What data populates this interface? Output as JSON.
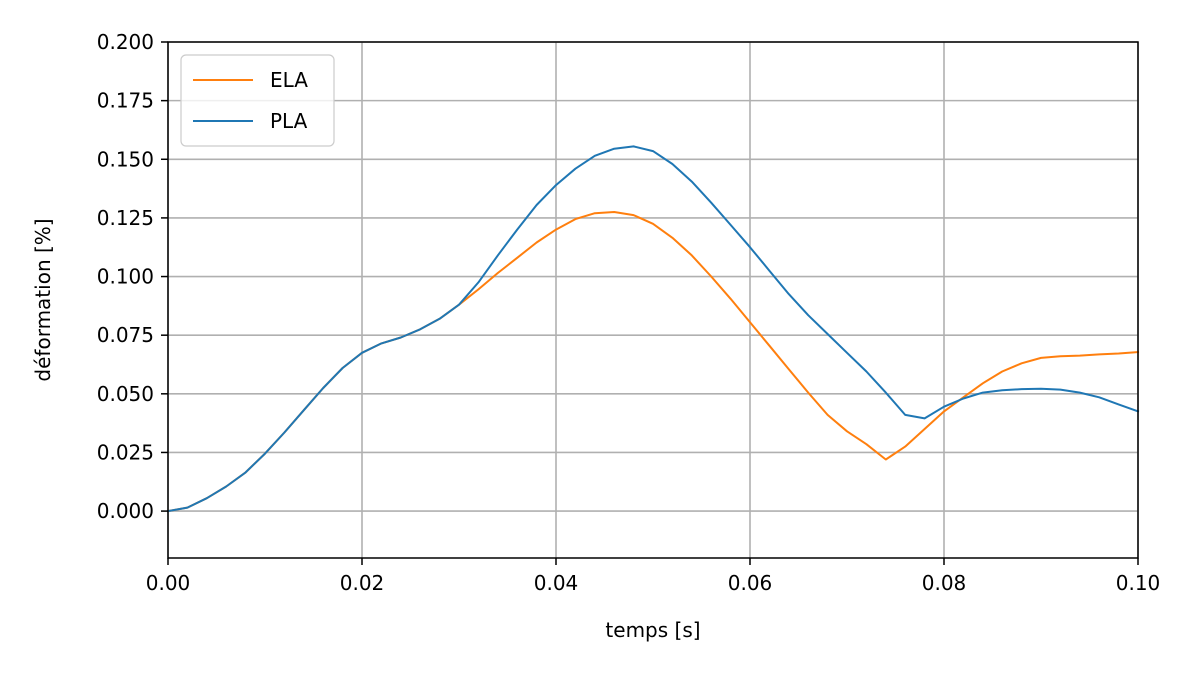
{
  "chart_data": {
    "type": "line",
    "title": "",
    "xlabel": "temps [s]",
    "ylabel": "déformation [%]",
    "xlim": [
      0.0,
      0.1
    ],
    "ylim": [
      -0.02,
      0.2
    ],
    "grid": true,
    "legend_position": "top-left",
    "x_ticks": [
      0.0,
      0.02,
      0.04,
      0.06,
      0.08,
      0.1
    ],
    "x_tick_labels": [
      "0.00",
      "0.02",
      "0.04",
      "0.06",
      "0.08",
      "0.10"
    ],
    "y_ticks": [
      0.0,
      0.025,
      0.05,
      0.075,
      0.1,
      0.125,
      0.15,
      0.175,
      0.2
    ],
    "y_tick_labels": [
      "0.000",
      "0.025",
      "0.050",
      "0.075",
      "0.100",
      "0.125",
      "0.150",
      "0.175",
      "0.200"
    ],
    "series": [
      {
        "name": "ELA",
        "color": "#ff7f0e",
        "x": [
          0.0,
          0.002,
          0.004,
          0.006,
          0.008,
          0.01,
          0.012,
          0.014,
          0.016,
          0.018,
          0.02,
          0.022,
          0.024,
          0.026,
          0.028,
          0.03,
          0.032,
          0.034,
          0.036,
          0.038,
          0.04,
          0.042,
          0.044,
          0.046,
          0.048,
          0.05,
          0.052,
          0.054,
          0.056,
          0.058,
          0.06,
          0.062,
          0.064,
          0.066,
          0.068,
          0.07,
          0.072,
          0.074,
          0.076,
          0.078,
          0.08,
          0.082,
          0.084,
          0.086,
          0.088,
          0.09,
          0.092,
          0.094,
          0.096,
          0.098,
          0.1
        ],
        "y": [
          0.0,
          0.0015,
          0.0055,
          0.0105,
          0.0165,
          0.0245,
          0.0335,
          0.043,
          0.0525,
          0.061,
          0.0675,
          0.0715,
          0.074,
          0.0775,
          0.082,
          0.088,
          0.0945,
          0.1015,
          0.108,
          0.1145,
          0.12,
          0.1245,
          0.127,
          0.1275,
          0.1262,
          0.1225,
          0.1165,
          0.109,
          0.1,
          0.0905,
          0.0805,
          0.0705,
          0.0605,
          0.0505,
          0.041,
          0.034,
          0.0285,
          0.022,
          0.0275,
          0.035,
          0.0425,
          0.0485,
          0.0545,
          0.0595,
          0.063,
          0.0653,
          0.066,
          0.0663,
          0.0668,
          0.0672,
          0.0678
        ]
      },
      {
        "name": "PLA",
        "color": "#1f77b4",
        "x": [
          0.0,
          0.002,
          0.004,
          0.006,
          0.008,
          0.01,
          0.012,
          0.014,
          0.016,
          0.018,
          0.02,
          0.022,
          0.024,
          0.026,
          0.028,
          0.03,
          0.032,
          0.034,
          0.036,
          0.038,
          0.04,
          0.042,
          0.044,
          0.046,
          0.048,
          0.05,
          0.052,
          0.054,
          0.056,
          0.058,
          0.06,
          0.062,
          0.064,
          0.066,
          0.068,
          0.07,
          0.072,
          0.074,
          0.076,
          0.078,
          0.08,
          0.082,
          0.084,
          0.086,
          0.088,
          0.09,
          0.092,
          0.094,
          0.096,
          0.098,
          0.1
        ],
        "y": [
          0.0,
          0.0015,
          0.0055,
          0.0105,
          0.0165,
          0.0245,
          0.0335,
          0.043,
          0.0525,
          0.061,
          0.0675,
          0.0715,
          0.074,
          0.0775,
          0.082,
          0.088,
          0.0975,
          0.109,
          0.12,
          0.1305,
          0.139,
          0.146,
          0.1515,
          0.1545,
          0.1555,
          0.1535,
          0.148,
          0.1405,
          0.1315,
          0.122,
          0.1125,
          0.1025,
          0.0925,
          0.0835,
          0.0755,
          0.0675,
          0.0595,
          0.0505,
          0.041,
          0.0395,
          0.0445,
          0.048,
          0.0505,
          0.0515,
          0.052,
          0.0522,
          0.0518,
          0.0505,
          0.0485,
          0.0455,
          0.0425
        ]
      }
    ]
  }
}
